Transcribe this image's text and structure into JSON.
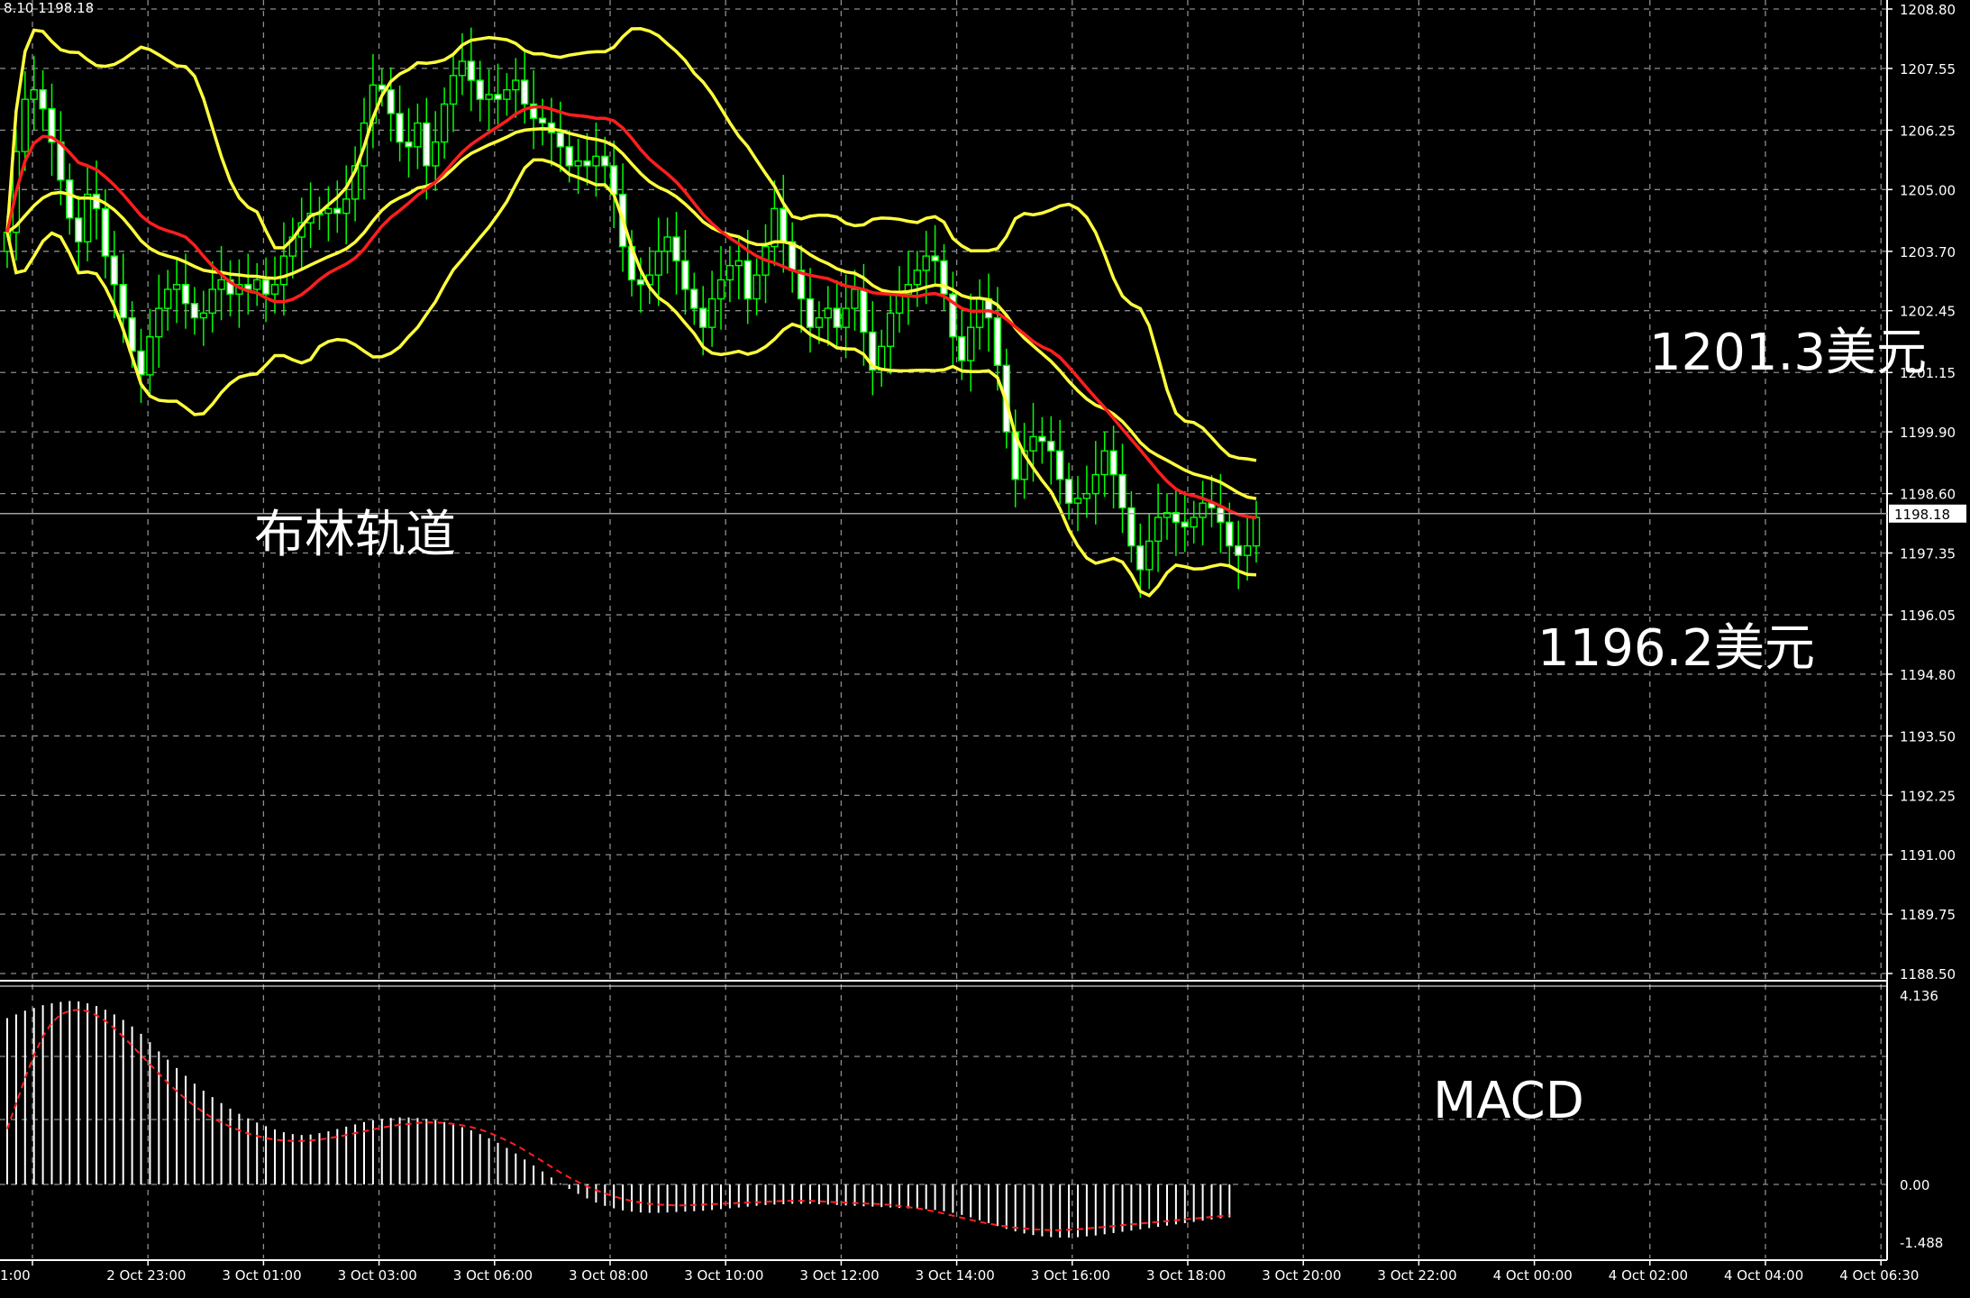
{
  "info_line": "8.10 1198.18",
  "colors": {
    "background": "#000000",
    "grid": "#8c8c8c",
    "candle": "#00ff00",
    "middle_band": "#ff1e1e",
    "outer_band": "#ffff3c",
    "macd_hist": "#ffffff",
    "macd_signal": "#ff2020",
    "price_line": "#a0a0a0",
    "axis_text": "#ffffff"
  },
  "chart_data": [
    {
      "type": "candlestick",
      "indicator": "Bollinger Bands",
      "y_ticks": [
        "1208.80",
        "1207.55",
        "1206.25",
        "1205.00",
        "1203.70",
        "1202.45",
        "1201.15",
        "1199.90",
        "1198.60",
        "1197.35",
        "1196.05",
        "1194.80",
        "1193.50",
        "1192.25",
        "1191.00",
        "1189.75",
        "1188.50"
      ],
      "ylim": [
        1188.5,
        1208.8
      ],
      "x_ticks": [
        "1:00",
        "2 Oct 23:00",
        "3 Oct 01:00",
        "3 Oct 03:00",
        "3 Oct 06:00",
        "3 Oct 08:00",
        "3 Oct 10:00",
        "3 Oct 12:00",
        "3 Oct 14:00",
        "3 Oct 16:00",
        "3 Oct 18:00",
        "3 Oct 20:00",
        "3 Oct 22:00",
        "4 Oct 00:00",
        "4 Oct 02:00",
        "4 Oct 04:00",
        "4 Oct 06:30"
      ],
      "current_price": "1198.18",
      "grid": true,
      "annotations": [
        "布林轨道",
        "1201.3美元",
        "1196.2美元"
      ],
      "close": [
        1204.1,
        1205.8,
        1206.9,
        1207.1,
        1206.7,
        1206.0,
        1205.2,
        1204.4,
        1203.9,
        1204.9,
        1204.6,
        1203.6,
        1203.0,
        1202.3,
        1201.6,
        1201.1,
        1201.9,
        1202.5,
        1202.9,
        1203.0,
        1202.6,
        1202.3,
        1202.4,
        1202.9,
        1203.1,
        1202.8,
        1203.0,
        1202.9,
        1203.1,
        1202.8,
        1203.0,
        1203.6,
        1204.0,
        1204.3,
        1204.5,
        1204.5,
        1204.6,
        1204.5,
        1204.8,
        1205.5,
        1206.4,
        1207.2,
        1207.1,
        1206.6,
        1206.0,
        1205.9,
        1206.4,
        1205.5,
        1206.0,
        1206.8,
        1207.4,
        1207.7,
        1207.3,
        1206.9,
        1207.0,
        1206.9,
        1207.1,
        1207.3,
        1206.8,
        1206.5,
        1206.4,
        1206.2,
        1205.9,
        1205.5,
        1205.6,
        1205.5,
        1205.7,
        1205.5,
        1204.9,
        1203.8,
        1203.1,
        1203.0,
        1203.2,
        1203.7,
        1204.0,
        1203.5,
        1202.9,
        1202.5,
        1202.1,
        1202.7,
        1203.1,
        1203.4,
        1203.5,
        1202.7,
        1203.2,
        1203.8,
        1204.6,
        1203.9,
        1203.3,
        1202.7,
        1202.1,
        1202.3,
        1202.5,
        1202.1,
        1202.5,
        1202.9,
        1202.0,
        1201.2,
        1201.7,
        1202.4,
        1202.8,
        1203.0,
        1203.3,
        1203.6,
        1203.5,
        1202.8,
        1201.9,
        1201.4,
        1202.1,
        1202.7,
        1202.3,
        1201.3,
        1199.9,
        1198.9,
        1199.5,
        1199.8,
        1199.7,
        1199.5,
        1198.9,
        1198.4,
        1198.5,
        1198.6,
        1199.0,
        1199.5,
        1199.0,
        1198.3,
        1197.5,
        1197.0,
        1197.6,
        1198.1,
        1198.2,
        1198.0,
        1197.9,
        1198.1,
        1198.4,
        1198.3,
        1198.0,
        1197.5,
        1197.3,
        1197.5,
        1198.1
      ]
    },
    {
      "type": "bar+line",
      "indicator": "MACD",
      "y_ticks": [
        "4.136",
        "0.00",
        "-1.488"
      ],
      "ylim": [
        -1.488,
        4.136
      ],
      "histogram": [
        3.6,
        3.68,
        3.76,
        3.82,
        3.88,
        3.92,
        3.95,
        3.97,
        3.96,
        3.92,
        3.86,
        3.78,
        3.68,
        3.56,
        3.42,
        3.26,
        3.08,
        2.88,
        2.7,
        2.52,
        2.35,
        2.18,
        2.03,
        1.89,
        1.76,
        1.64,
        1.53,
        1.43,
        1.34,
        1.26,
        1.19,
        1.13,
        1.09,
        1.07,
        1.08,
        1.11,
        1.15,
        1.2,
        1.25,
        1.3,
        1.35,
        1.39,
        1.42,
        1.44,
        1.45,
        1.45,
        1.44,
        1.42,
        1.39,
        1.35,
        1.3,
        1.24,
        1.17,
        1.09,
        1.0,
        0.9,
        0.79,
        0.67,
        0.54,
        0.41,
        0.28,
        0.15,
        0.02,
        -0.11,
        -0.23,
        -0.34,
        -0.44,
        -0.52,
        -0.58,
        -0.63,
        -0.66,
        -0.68,
        -0.69,
        -0.69,
        -0.68,
        -0.67,
        -0.66,
        -0.65,
        -0.64,
        -0.62,
        -0.6,
        -0.58,
        -0.56,
        -0.54,
        -0.52,
        -0.5,
        -0.49,
        -0.48,
        -0.47,
        -0.47,
        -0.47,
        -0.48,
        -0.49,
        -0.5,
        -0.51,
        -0.52,
        -0.53,
        -0.54,
        -0.55,
        -0.56,
        -0.57,
        -0.58,
        -0.59,
        -0.6,
        -0.62,
        -0.65,
        -0.69,
        -0.74,
        -0.8,
        -0.87,
        -0.94,
        -1.01,
        -1.08,
        -1.14,
        -1.19,
        -1.23,
        -1.26,
        -1.28,
        -1.29,
        -1.29,
        -1.28,
        -1.26,
        -1.24,
        -1.21,
        -1.18,
        -1.15,
        -1.12,
        -1.09,
        -1.06,
        -1.03,
        -1.0,
        -0.97,
        -0.94,
        -0.91,
        -0.88,
        -0.85,
        -0.82,
        -0.8
      ],
      "signal": [
        1.2,
        1.75,
        2.3,
        2.8,
        3.2,
        3.5,
        3.68,
        3.76,
        3.78,
        3.75,
        3.66,
        3.54,
        3.38,
        3.2,
        3.0,
        2.8,
        2.6,
        2.4,
        2.2,
        2.02,
        1.85,
        1.7,
        1.56,
        1.44,
        1.34,
        1.25,
        1.17,
        1.1,
        1.05,
        1.0,
        0.97,
        0.95,
        0.94,
        0.94,
        0.95,
        0.97,
        1.0,
        1.03,
        1.07,
        1.11,
        1.15,
        1.19,
        1.23,
        1.26,
        1.29,
        1.31,
        1.33,
        1.34,
        1.34,
        1.33,
        1.31,
        1.28,
        1.24,
        1.19,
        1.12,
        1.04,
        0.95,
        0.85,
        0.74,
        0.62,
        0.5,
        0.38,
        0.26,
        0.15,
        0.05,
        -0.05,
        -0.14,
        -0.22,
        -0.29,
        -0.35,
        -0.4,
        -0.44,
        -0.47,
        -0.49,
        -0.5,
        -0.51,
        -0.51,
        -0.5,
        -0.49,
        -0.48,
        -0.47,
        -0.46,
        -0.45,
        -0.44,
        -0.43,
        -0.42,
        -0.41,
        -0.4,
        -0.4,
        -0.4,
        -0.4,
        -0.41,
        -0.42,
        -0.43,
        -0.44,
        -0.45,
        -0.46,
        -0.47,
        -0.48,
        -0.5,
        -0.52,
        -0.55,
        -0.58,
        -0.62,
        -0.66,
        -0.71,
        -0.76,
        -0.81,
        -0.86,
        -0.91,
        -0.95,
        -0.99,
        -1.02,
        -1.05,
        -1.07,
        -1.09,
        -1.1,
        -1.11,
        -1.11,
        -1.1,
        -1.09,
        -1.07,
        -1.05,
        -1.03,
        -1.01,
        -0.99,
        -0.97,
        -0.95,
        -0.93,
        -0.91,
        -0.89,
        -0.87,
        -0.85,
        -0.83,
        -0.81,
        -0.79,
        -0.77,
        -0.75
      ],
      "annotations": [
        "MACD"
      ]
    }
  ]
}
